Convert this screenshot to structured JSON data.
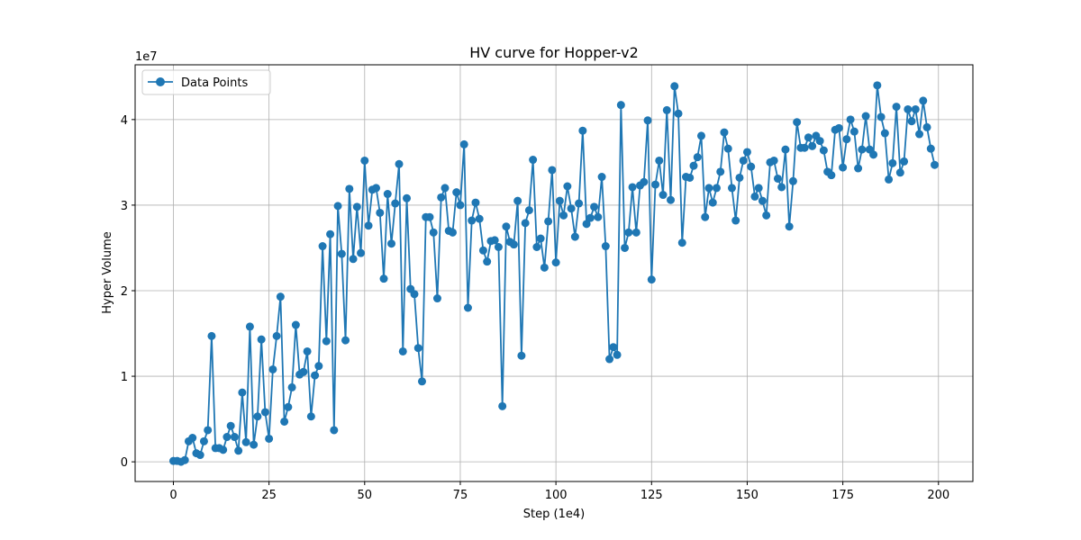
{
  "chart_data": {
    "type": "line",
    "title": "HV curve for Hopper-v2",
    "xlabel": "Step (1e4)",
    "ylabel": "Hyper Volume",
    "y_scale_label": "1e7",
    "xlim": [
      -10,
      209
    ],
    "ylim": [
      -2.3,
      46.4
    ],
    "x_ticks": [
      0,
      25,
      50,
      75,
      100,
      125,
      150,
      175,
      200
    ],
    "x_tick_labels": [
      "0",
      "25",
      "50",
      "75",
      "100",
      "125",
      "150",
      "175",
      "200"
    ],
    "y_ticks": [
      0,
      10,
      20,
      30,
      40
    ],
    "y_tick_labels": [
      "0",
      "1",
      "2",
      "3",
      "4"
    ],
    "grid": true,
    "legend_position": "upper-left",
    "series": [
      {
        "name": "Data Points",
        "color": "#1f77b4",
        "marker": "circle",
        "x": [
          0,
          1,
          2,
          3,
          4,
          5,
          6,
          7,
          8,
          9,
          10,
          11,
          12,
          13,
          14,
          15,
          16,
          17,
          18,
          19,
          20,
          21,
          22,
          23,
          24,
          25,
          26,
          27,
          28,
          29,
          30,
          31,
          32,
          33,
          34,
          35,
          36,
          37,
          38,
          39,
          40,
          41,
          42,
          43,
          44,
          45,
          46,
          47,
          48,
          49,
          50,
          51,
          52,
          53,
          54,
          55,
          56,
          57,
          58,
          59,
          60,
          61,
          62,
          63,
          64,
          65,
          66,
          67,
          68,
          69,
          70,
          71,
          72,
          73,
          74,
          75,
          76,
          77,
          78,
          79,
          80,
          81,
          82,
          83,
          84,
          85,
          86,
          87,
          88,
          89,
          90,
          91,
          92,
          93,
          94,
          95,
          96,
          97,
          98,
          99,
          100,
          101,
          102,
          103,
          104,
          105,
          106,
          107,
          108,
          109,
          110,
          111,
          112,
          113,
          114,
          115,
          116,
          117,
          118,
          119,
          120,
          121,
          122,
          123,
          124,
          125,
          126,
          127,
          128,
          129,
          130,
          131,
          132,
          133,
          134,
          135,
          136,
          137,
          138,
          139,
          140,
          141,
          142,
          143,
          144,
          145,
          146,
          147,
          148,
          149,
          150,
          151,
          152,
          153,
          154,
          155,
          156,
          157,
          158,
          159,
          160,
          161,
          162,
          163,
          164,
          165,
          166,
          167,
          168,
          169,
          170,
          171,
          172,
          173,
          174,
          175,
          176,
          177,
          178,
          179,
          180,
          181,
          182,
          183,
          184,
          185,
          186,
          187,
          188,
          189,
          190,
          191,
          192,
          193,
          194,
          195,
          196,
          197,
          198,
          199
        ],
        "y": [
          0.1,
          0.1,
          0.0,
          0.2,
          2.4,
          2.8,
          1.0,
          0.8,
          2.4,
          3.7,
          14.7,
          1.6,
          1.6,
          1.4,
          2.9,
          4.2,
          2.9,
          1.3,
          8.1,
          2.3,
          15.8,
          2.0,
          5.3,
          14.3,
          5.8,
          2.7,
          10.8,
          14.7,
          19.3,
          4.7,
          6.4,
          8.7,
          16.0,
          10.2,
          10.5,
          12.9,
          5.3,
          10.1,
          11.2,
          25.2,
          14.1,
          26.6,
          3.7,
          29.9,
          24.3,
          14.2,
          31.9,
          23.7,
          29.8,
          24.4,
          35.2,
          27.6,
          31.8,
          32.0,
          29.1,
          21.4,
          31.3,
          25.5,
          30.2,
          34.8,
          12.9,
          30.8,
          20.2,
          19.6,
          13.3,
          9.4,
          28.6,
          28.6,
          26.8,
          19.1,
          30.9,
          32.0,
          27.0,
          26.8,
          31.5,
          30.0,
          37.1,
          18.0,
          28.2,
          30.3,
          28.4,
          24.7,
          23.4,
          25.8,
          25.9,
          25.1,
          6.5,
          27.5,
          25.7,
          25.4,
          30.5,
          12.4,
          27.9,
          29.4,
          35.3,
          25.1,
          26.1,
          22.7,
          28.1,
          34.1,
          23.3,
          30.5,
          28.8,
          32.2,
          29.6,
          26.3,
          30.2,
          38.7,
          27.8,
          28.5,
          29.8,
          28.6,
          33.3,
          25.2,
          12.0,
          13.4,
          12.5,
          41.7,
          25.0,
          26.8,
          32.1,
          26.8,
          32.3,
          32.7,
          39.9,
          21.3,
          32.4,
          35.2,
          31.2,
          41.1,
          30.6,
          43.9,
          40.7,
          25.6,
          33.3,
          33.2,
          34.6,
          35.6,
          38.1,
          28.6,
          32.0,
          30.3,
          32.0,
          33.9,
          38.5,
          36.6,
          32.0,
          28.2,
          33.2,
          35.2,
          36.2,
          34.5,
          31.0,
          32.0,
          30.5,
          28.8,
          35.0,
          35.2,
          33.1,
          32.1,
          36.5,
          27.5,
          32.8,
          39.7,
          36.7,
          36.7,
          37.9,
          36.9,
          38.1,
          37.5,
          36.4,
          33.9,
          33.5,
          38.8,
          39.0,
          34.4,
          37.7,
          40.0,
          38.6,
          34.3,
          36.5,
          40.4,
          36.5,
          35.9,
          44.0,
          40.3,
          38.4,
          33.0,
          34.9,
          41.5,
          33.8,
          35.1,
          41.2,
          39.8,
          41.2,
          38.3,
          42.2,
          39.1,
          36.6,
          34.7
        ]
      }
    ]
  }
}
